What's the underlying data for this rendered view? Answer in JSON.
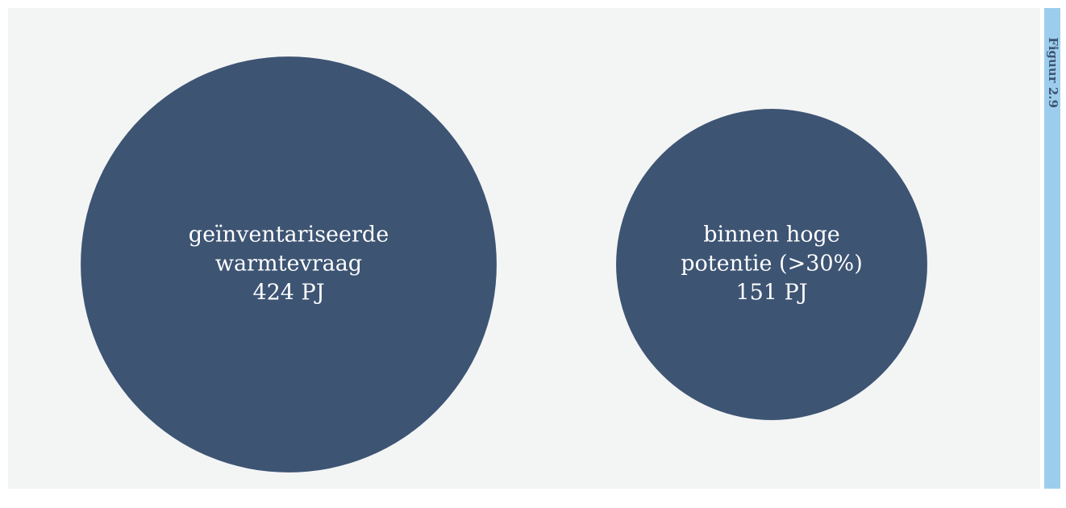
{
  "chart_data": {
    "type": "bubble",
    "side_label": "Figuur 2.9",
    "categories": [
      [
        "geïnventariseerde",
        "warmtevraag"
      ],
      [
        "binnen hoge",
        "potentie (>30%)"
      ]
    ],
    "values": [
      424,
      151
    ],
    "value_labels": [
      "424 PJ",
      "151 PJ"
    ],
    "color": "#3d5473"
  }
}
